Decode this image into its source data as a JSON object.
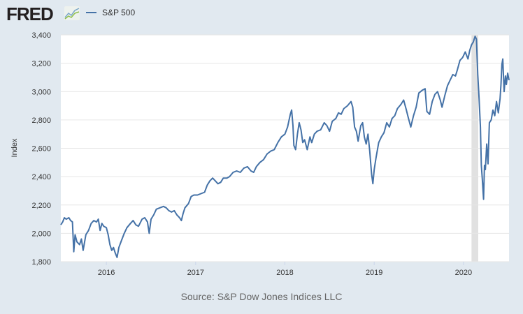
{
  "header": {
    "logo": "FRED",
    "legend_label": "S&P 500",
    "series_color": "#4572a7"
  },
  "source": "Source: S&P Dow Jones Indices LLC",
  "chart_data": {
    "type": "line",
    "title": "S&P 500",
    "xlabel": "",
    "ylabel": "Index",
    "ylim": [
      1800,
      3400
    ],
    "xlim": [
      2015.49,
      2020.51
    ],
    "yticks": [
      1800,
      2000,
      2200,
      2400,
      2600,
      2800,
      3000,
      3200,
      3400
    ],
    "ytick_labels": [
      "1,800",
      "2,000",
      "2,200",
      "2,400",
      "2,600",
      "2,800",
      "3,000",
      "3,200",
      "3,400"
    ],
    "xticks": [
      2016,
      2017,
      2018,
      2019,
      2020
    ],
    "xtick_labels": [
      "2016",
      "2017",
      "2018",
      "2019",
      "2020"
    ],
    "grid": true,
    "legend": "top-left",
    "recessions": [
      [
        2020.09,
        2020.165
      ]
    ],
    "series": [
      {
        "name": "S&P 500",
        "color": "#4572a7",
        "points": [
          [
            2015.49,
            2060
          ],
          [
            2015.51,
            2080
          ],
          [
            2015.53,
            2110
          ],
          [
            2015.55,
            2100
          ],
          [
            2015.58,
            2110
          ],
          [
            2015.6,
            2090
          ],
          [
            2015.62,
            2080
          ],
          [
            2015.635,
            1870
          ],
          [
            2015.65,
            1990
          ],
          [
            2015.67,
            1940
          ],
          [
            2015.7,
            1920
          ],
          [
            2015.72,
            1960
          ],
          [
            2015.74,
            1880
          ],
          [
            2015.77,
            1990
          ],
          [
            2015.8,
            2020
          ],
          [
            2015.83,
            2070
          ],
          [
            2015.86,
            2090
          ],
          [
            2015.89,
            2080
          ],
          [
            2015.91,
            2100
          ],
          [
            2015.93,
            2020
          ],
          [
            2015.95,
            2070
          ],
          [
            2015.97,
            2050
          ],
          [
            2016.0,
            2040
          ],
          [
            2016.02,
            1990
          ],
          [
            2016.04,
            1920
          ],
          [
            2016.06,
            1880
          ],
          [
            2016.08,
            1900
          ],
          [
            2016.1,
            1860
          ],
          [
            2016.12,
            1830
          ],
          [
            2016.14,
            1900
          ],
          [
            2016.17,
            1950
          ],
          [
            2016.2,
            2000
          ],
          [
            2016.23,
            2040
          ],
          [
            2016.27,
            2070
          ],
          [
            2016.3,
            2090
          ],
          [
            2016.33,
            2060
          ],
          [
            2016.36,
            2050
          ],
          [
            2016.4,
            2100
          ],
          [
            2016.43,
            2110
          ],
          [
            2016.46,
            2080
          ],
          [
            2016.48,
            2000
          ],
          [
            2016.5,
            2100
          ],
          [
            2016.53,
            2130
          ],
          [
            2016.56,
            2170
          ],
          [
            2016.6,
            2180
          ],
          [
            2016.64,
            2190
          ],
          [
            2016.67,
            2180
          ],
          [
            2016.7,
            2160
          ],
          [
            2016.73,
            2150
          ],
          [
            2016.76,
            2160
          ],
          [
            2016.79,
            2130
          ],
          [
            2016.82,
            2110
          ],
          [
            2016.84,
            2090
          ],
          [
            2016.86,
            2140
          ],
          [
            2016.88,
            2180
          ],
          [
            2016.92,
            2210
          ],
          [
            2016.95,
            2260
          ],
          [
            2016.98,
            2270
          ],
          [
            2017.02,
            2270
          ],
          [
            2017.06,
            2280
          ],
          [
            2017.1,
            2290
          ],
          [
            2017.13,
            2340
          ],
          [
            2017.16,
            2370
          ],
          [
            2017.19,
            2390
          ],
          [
            2017.22,
            2370
          ],
          [
            2017.25,
            2350
          ],
          [
            2017.28,
            2360
          ],
          [
            2017.31,
            2390
          ],
          [
            2017.35,
            2390
          ],
          [
            2017.38,
            2400
          ],
          [
            2017.42,
            2430
          ],
          [
            2017.46,
            2440
          ],
          [
            2017.5,
            2430
          ],
          [
            2017.54,
            2460
          ],
          [
            2017.58,
            2470
          ],
          [
            2017.62,
            2440
          ],
          [
            2017.65,
            2430
          ],
          [
            2017.68,
            2470
          ],
          [
            2017.72,
            2500
          ],
          [
            2017.76,
            2520
          ],
          [
            2017.8,
            2560
          ],
          [
            2017.84,
            2580
          ],
          [
            2017.88,
            2590
          ],
          [
            2017.92,
            2640
          ],
          [
            2017.96,
            2680
          ],
          [
            2018.0,
            2700
          ],
          [
            2018.03,
            2750
          ],
          [
            2018.06,
            2840
          ],
          [
            2018.075,
            2870
          ],
          [
            2018.09,
            2760
          ],
          [
            2018.1,
            2620
          ],
          [
            2018.12,
            2590
          ],
          [
            2018.14,
            2700
          ],
          [
            2018.16,
            2780
          ],
          [
            2018.18,
            2730
          ],
          [
            2018.2,
            2640
          ],
          [
            2018.22,
            2660
          ],
          [
            2018.25,
            2590
          ],
          [
            2018.28,
            2680
          ],
          [
            2018.3,
            2640
          ],
          [
            2018.33,
            2700
          ],
          [
            2018.36,
            2720
          ],
          [
            2018.4,
            2730
          ],
          [
            2018.44,
            2780
          ],
          [
            2018.47,
            2760
          ],
          [
            2018.5,
            2720
          ],
          [
            2018.53,
            2790
          ],
          [
            2018.57,
            2810
          ],
          [
            2018.6,
            2850
          ],
          [
            2018.63,
            2840
          ],
          [
            2018.66,
            2880
          ],
          [
            2018.7,
            2900
          ],
          [
            2018.74,
            2930
          ],
          [
            2018.76,
            2890
          ],
          [
            2018.78,
            2750
          ],
          [
            2018.8,
            2720
          ],
          [
            2018.82,
            2650
          ],
          [
            2018.85,
            2760
          ],
          [
            2018.87,
            2780
          ],
          [
            2018.89,
            2680
          ],
          [
            2018.91,
            2630
          ],
          [
            2018.93,
            2700
          ],
          [
            2018.95,
            2580
          ],
          [
            2018.97,
            2420
          ],
          [
            2018.985,
            2350
          ],
          [
            2019.0,
            2450
          ],
          [
            2019.02,
            2530
          ],
          [
            2019.05,
            2640
          ],
          [
            2019.08,
            2680
          ],
          [
            2019.11,
            2710
          ],
          [
            2019.14,
            2780
          ],
          [
            2019.17,
            2750
          ],
          [
            2019.2,
            2810
          ],
          [
            2019.23,
            2830
          ],
          [
            2019.26,
            2880
          ],
          [
            2019.3,
            2910
          ],
          [
            2019.33,
            2940
          ],
          [
            2019.36,
            2870
          ],
          [
            2019.38,
            2820
          ],
          [
            2019.41,
            2750
          ],
          [
            2019.44,
            2830
          ],
          [
            2019.47,
            2890
          ],
          [
            2019.5,
            2990
          ],
          [
            2019.54,
            3010
          ],
          [
            2019.57,
            3020
          ],
          [
            2019.59,
            2860
          ],
          [
            2019.62,
            2840
          ],
          [
            2019.65,
            2930
          ],
          [
            2019.68,
            2980
          ],
          [
            2019.71,
            3000
          ],
          [
            2019.74,
            2940
          ],
          [
            2019.76,
            2890
          ],
          [
            2019.79,
            2970
          ],
          [
            2019.82,
            3040
          ],
          [
            2019.85,
            3080
          ],
          [
            2019.88,
            3120
          ],
          [
            2019.91,
            3110
          ],
          [
            2019.93,
            3150
          ],
          [
            2019.96,
            3220
          ],
          [
            2019.99,
            3240
          ],
          [
            2020.02,
            3280
          ],
          [
            2020.05,
            3230
          ],
          [
            2020.07,
            3290
          ],
          [
            2020.09,
            3330
          ],
          [
            2020.11,
            3350
          ],
          [
            2020.13,
            3390
          ],
          [
            2020.145,
            3370
          ],
          [
            2020.16,
            3120
          ],
          [
            2020.175,
            2950
          ],
          [
            2020.19,
            2750
          ],
          [
            2020.2,
            2480
          ],
          [
            2020.21,
            2390
          ],
          [
            2020.225,
            2240
          ],
          [
            2020.235,
            2480
          ],
          [
            2020.245,
            2450
          ],
          [
            2020.26,
            2630
          ],
          [
            2020.275,
            2490
          ],
          [
            2020.29,
            2780
          ],
          [
            2020.31,
            2800
          ],
          [
            2020.33,
            2870
          ],
          [
            2020.35,
            2830
          ],
          [
            2020.37,
            2930
          ],
          [
            2020.39,
            2850
          ],
          [
            2020.41,
            2950
          ],
          [
            2020.42,
            3050
          ],
          [
            2020.43,
            3190
          ],
          [
            2020.44,
            3230
          ],
          [
            2020.455,
            3000
          ],
          [
            2020.47,
            3110
          ],
          [
            2020.48,
            3050
          ],
          [
            2020.495,
            3130
          ],
          [
            2020.51,
            3080
          ]
        ]
      }
    ]
  }
}
